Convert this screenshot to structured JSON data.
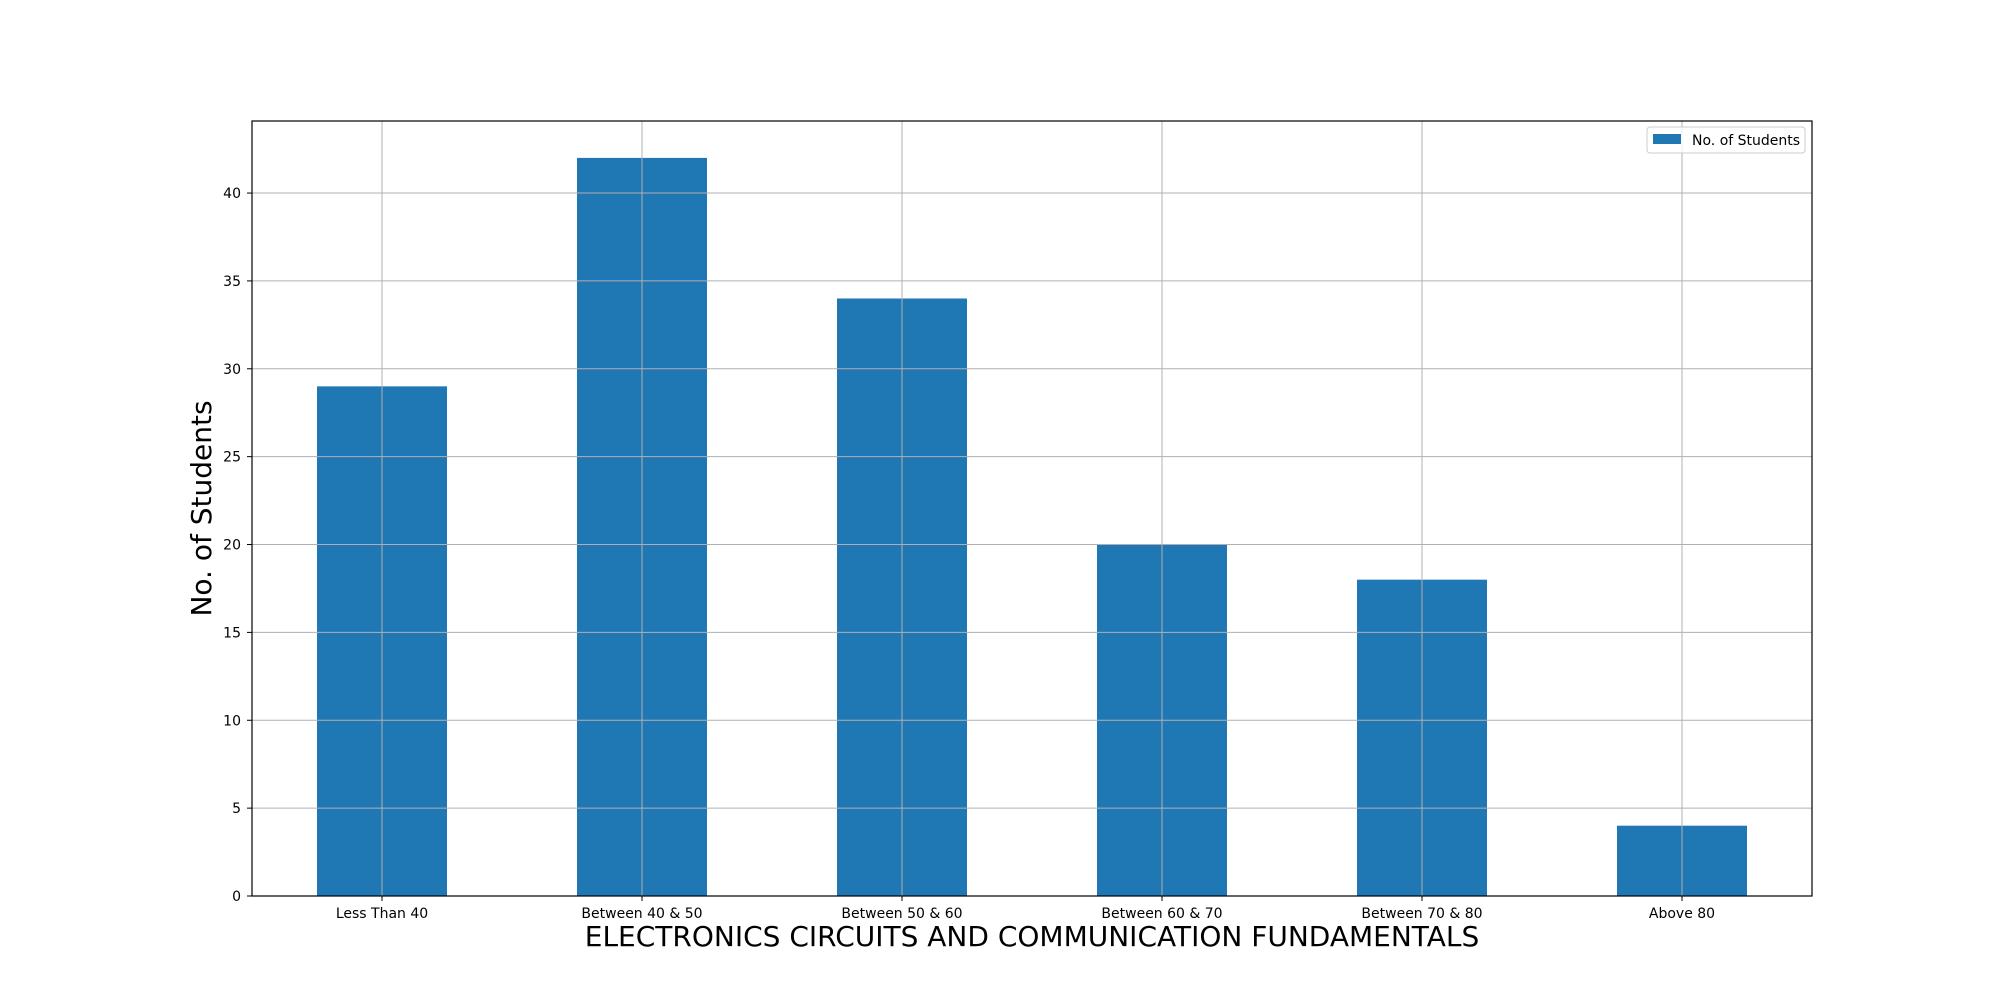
{
  "chart_data": {
    "type": "bar",
    "categories": [
      "Less Than 40",
      "Between 40 & 50",
      "Between 50 & 60",
      "Between 60 & 70",
      "Between 70 & 80",
      "Above 80"
    ],
    "series": [
      {
        "name": "No. of Students",
        "values": [
          29,
          42,
          34,
          20,
          18,
          4
        ]
      }
    ],
    "xlabel": "ELECTRONICS CIRCUITS AND COMMUNICATION FUNDAMENTALS",
    "ylabel": "No. of Students",
    "ylim": [
      0,
      44.1
    ],
    "yticks": [
      0,
      5,
      10,
      15,
      20,
      25,
      30,
      35,
      40
    ],
    "grid": true,
    "legend_position": "top-right",
    "bar_color": "#1f77b4"
  }
}
